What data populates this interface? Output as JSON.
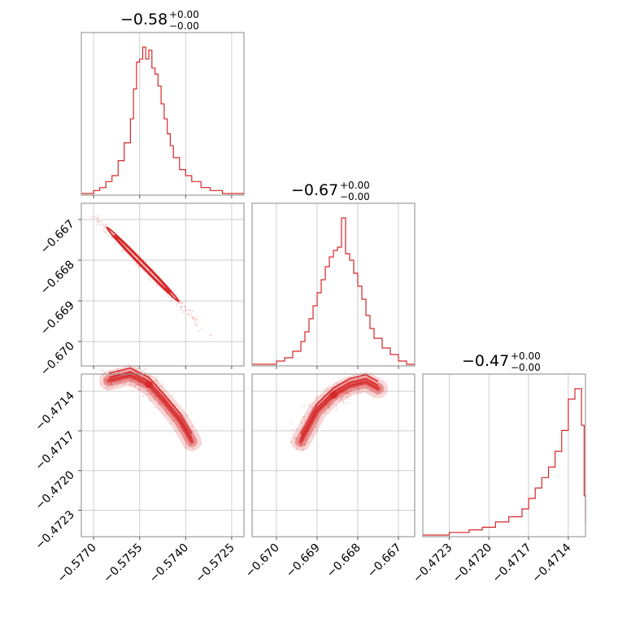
{
  "chart_data": [
    {
      "type": "histogram",
      "panel": "diag-1",
      "title": "−0.58",
      "title_sup": "+0.00",
      "title_sub": "−0.00",
      "x_ticks": [
        "−0.5770",
        "−0.5755",
        "−0.5740",
        "−0.5725"
      ],
      "x_tick_values": [
        -0.577,
        -0.5755,
        -0.574,
        -0.5725
      ],
      "xlim": [
        -0.5774,
        -0.5721
      ],
      "bins": [
        [
          -0.5774,
          0
        ],
        [
          -0.577,
          1
        ],
        [
          -0.5768,
          2
        ],
        [
          -0.5766,
          4
        ],
        [
          -0.5764,
          6
        ],
        [
          -0.5762,
          11
        ],
        [
          -0.576,
          17
        ],
        [
          -0.5758,
          25
        ],
        [
          -0.5757,
          35
        ],
        [
          -0.5756,
          44
        ],
        [
          -0.5755,
          45
        ],
        [
          -0.5754,
          49
        ],
        [
          -0.5753,
          45
        ],
        [
          -0.5752,
          48
        ],
        [
          -0.5751,
          42
        ],
        [
          -0.575,
          40
        ],
        [
          -0.5749,
          36
        ],
        [
          -0.5748,
          30
        ],
        [
          -0.5747,
          25
        ],
        [
          -0.5746,
          20
        ],
        [
          -0.5745,
          16
        ],
        [
          -0.5744,
          12
        ],
        [
          -0.5742,
          8
        ],
        [
          -0.574,
          6
        ],
        [
          -0.5738,
          4
        ],
        [
          -0.5735,
          2
        ],
        [
          -0.5732,
          1
        ],
        [
          -0.5728,
          0
        ]
      ],
      "grid": true,
      "color": "#d62728"
    },
    {
      "type": "histogram",
      "panel": "diag-2",
      "title": "−0.67",
      "title_sup": "+0.00",
      "title_sub": "−0.00",
      "x_ticks": [
        "−0.670",
        "−0.669",
        "−0.668",
        "−0.667"
      ],
      "x_tick_values": [
        -0.67,
        -0.669,
        -0.668,
        -0.667
      ],
      "xlim": [
        -0.6706,
        -0.6666
      ],
      "bins": [
        [
          -0.6706,
          0
        ],
        [
          -0.67,
          1
        ],
        [
          -0.6698,
          2
        ],
        [
          -0.6696,
          4
        ],
        [
          -0.6694,
          7
        ],
        [
          -0.6693,
          10
        ],
        [
          -0.6692,
          14
        ],
        [
          -0.6691,
          18
        ],
        [
          -0.669,
          22
        ],
        [
          -0.6689,
          26
        ],
        [
          -0.6688,
          30
        ],
        [
          -0.6687,
          33
        ],
        [
          -0.6686,
          35
        ],
        [
          -0.6685,
          36
        ],
        [
          -0.6684,
          45
        ],
        [
          -0.6683,
          34
        ],
        [
          -0.6682,
          32
        ],
        [
          -0.6681,
          28
        ],
        [
          -0.668,
          24
        ],
        [
          -0.6679,
          20
        ],
        [
          -0.6678,
          15
        ],
        [
          -0.6677,
          11
        ],
        [
          -0.6676,
          8
        ],
        [
          -0.6674,
          5
        ],
        [
          -0.6672,
          3
        ],
        [
          -0.667,
          1
        ],
        [
          -0.6668,
          0
        ]
      ],
      "grid": true,
      "color": "#d62728"
    },
    {
      "type": "histogram",
      "panel": "diag-3",
      "title": "−0.47",
      "title_sup": "+0.00",
      "title_sub": "−0.00",
      "x_ticks": [
        "−0.4723",
        "−0.4720",
        "−0.4717",
        "−0.4714"
      ],
      "x_tick_values": [
        -0.4723,
        -0.472,
        -0.4717,
        -0.4714
      ],
      "xlim": [
        -0.4725,
        -0.47127
      ],
      "bins": [
        [
          -0.4725,
          0
        ],
        [
          -0.4723,
          1
        ],
        [
          -0.47215,
          2
        ],
        [
          -0.47205,
          3
        ],
        [
          -0.47195,
          5
        ],
        [
          -0.47185,
          7
        ],
        [
          -0.47175,
          10
        ],
        [
          -0.4717,
          14
        ],
        [
          -0.47165,
          18
        ],
        [
          -0.4716,
          22
        ],
        [
          -0.47155,
          26
        ],
        [
          -0.4715,
          32
        ],
        [
          -0.47145,
          40
        ],
        [
          -0.4714,
          52
        ],
        [
          -0.47135,
          56
        ],
        [
          -0.4713,
          42
        ],
        [
          -0.47128,
          15
        ],
        [
          -0.47127,
          5
        ]
      ],
      "grid": true,
      "color": "#d62728"
    },
    {
      "type": "scatter",
      "panel": "corner-2-1",
      "y_ticks": [
        "−0.667",
        "−0.668",
        "−0.669",
        "−0.670"
      ],
      "y_tick_values": [
        -0.667,
        -0.668,
        -0.669,
        -0.67
      ],
      "xlim": [
        -0.5774,
        -0.5721
      ],
      "ylim": [
        -0.6706,
        -0.6666
      ],
      "trend": {
        "from": [
          -0.577,
          -0.6669
        ],
        "to": [
          -0.573,
          -0.67
        ]
      },
      "contours": [
        {
          "center": [
            -0.5754,
            -0.6681
          ],
          "half_length": 0.00135,
          "half_width": 9e-05
        },
        {
          "center": [
            -0.5754,
            -0.6681
          ],
          "half_length": 0.00105,
          "half_width": 6e-05
        }
      ],
      "grid": true,
      "color": "#d62728"
    },
    {
      "type": "scatter",
      "panel": "corner-3-1",
      "y_ticks": [
        "−0.4714",
        "−0.4717",
        "−0.4720",
        "−0.4723"
      ],
      "y_tick_values": [
        -0.4714,
        -0.4717,
        -0.472,
        -0.4723
      ],
      "xlim": [
        -0.5774,
        -0.5721
      ],
      "ylim": [
        -0.4725,
        -0.47127
      ],
      "curve": [
        [
          -0.5765,
          -0.47132
        ],
        [
          -0.5758,
          -0.47128
        ],
        [
          -0.5752,
          -0.47135
        ],
        [
          -0.5747,
          -0.47148
        ],
        [
          -0.5742,
          -0.47162
        ],
        [
          -0.5738,
          -0.47178
        ]
      ],
      "grid": true,
      "color": "#d62728"
    },
    {
      "type": "scatter",
      "panel": "corner-3-2",
      "xlim": [
        -0.6706,
        -0.6666
      ],
      "ylim": [
        -0.4725,
        -0.47127
      ],
      "curve": [
        [
          -0.6694,
          -0.47178
        ],
        [
          -0.669,
          -0.47155
        ],
        [
          -0.6686,
          -0.47143
        ],
        [
          -0.6682,
          -0.47136
        ],
        [
          -0.6678,
          -0.47133
        ],
        [
          -0.6675,
          -0.47138
        ]
      ],
      "grid": true,
      "color": "#d62728"
    }
  ]
}
